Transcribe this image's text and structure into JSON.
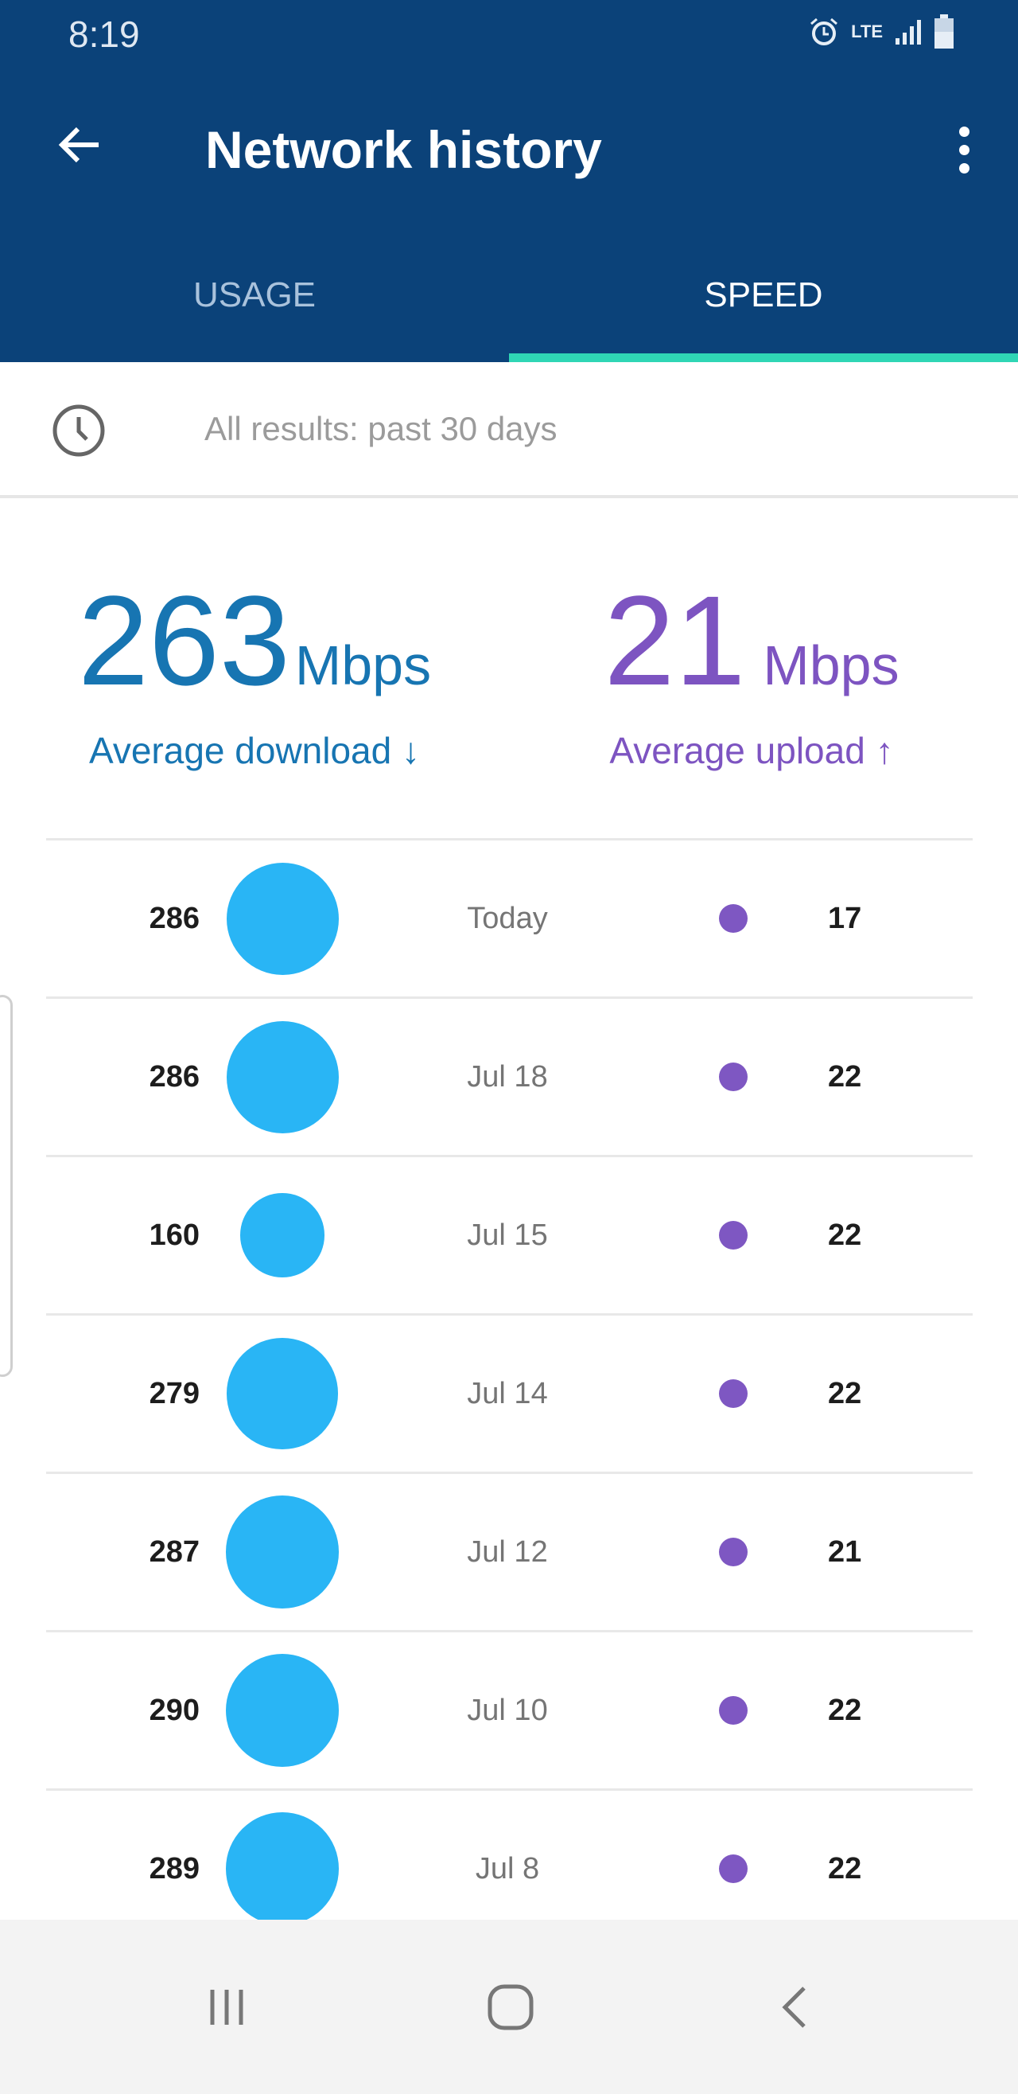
{
  "status_bar": {
    "time": "8:19",
    "network": "LTE",
    "icons": [
      "alarm-icon",
      "lte-icon",
      "signal-icon",
      "battery-icon"
    ]
  },
  "app_bar": {
    "title": "Network history",
    "back_icon": "arrow-left-icon",
    "menu_icon": "more-vertical-icon"
  },
  "tabs": [
    {
      "label": "USAGE",
      "selected": false
    },
    {
      "label": "SPEED",
      "selected": true
    }
  ],
  "filter": {
    "icon": "clock-icon",
    "text": "All results: past 30 days"
  },
  "summary": {
    "download": {
      "value": "263",
      "unit": "Mbps",
      "label": "Average download ↓"
    },
    "upload": {
      "value": "21",
      "unit": "Mbps",
      "label": "Average upload ↑"
    }
  },
  "results": [
    {
      "download": "286",
      "date": "Today",
      "upload": "17"
    },
    {
      "download": "286",
      "date": "Jul 18",
      "upload": "22"
    },
    {
      "download": "160",
      "date": "Jul 15",
      "upload": "22"
    },
    {
      "download": "279",
      "date": "Jul 14",
      "upload": "22"
    },
    {
      "download": "287",
      "date": "Jul 12",
      "upload": "21"
    },
    {
      "download": "290",
      "date": "Jul 10",
      "upload": "22"
    },
    {
      "download": "289",
      "date": "Jul 8",
      "upload": "22"
    }
  ],
  "nav_bar": {
    "icons": [
      "recent-apps-icon",
      "home-icon",
      "back-icon"
    ]
  },
  "colors": {
    "header": "#0b4279",
    "tab_indicator": "#2fd6b5",
    "download": "#1775b2",
    "upload": "#7d54c1",
    "download_circle": "#29b5f5",
    "upload_dot": "#7e57c2"
  }
}
